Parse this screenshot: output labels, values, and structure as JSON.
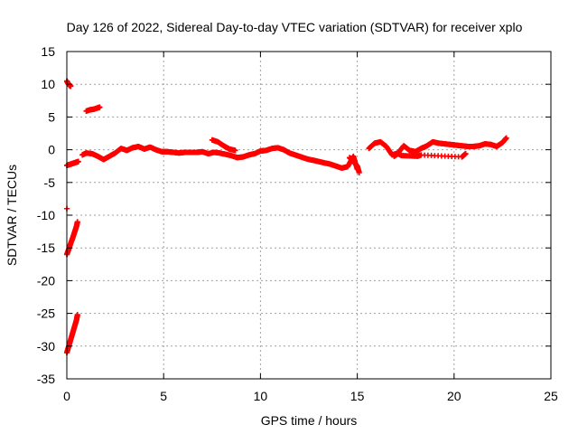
{
  "chart_data": {
    "type": "scatter",
    "title": "Day 126 of 2022, Sidereal Day-to-day VTEC variation (SDTVAR) for receiver xplo",
    "xlabel": "GPS time / hours",
    "ylabel": "SDTVAR / TECUs",
    "xlim": [
      0,
      25
    ],
    "ylim": [
      -35,
      15
    ],
    "xticks": [
      0,
      5,
      10,
      15,
      20,
      25
    ],
    "yticks": [
      15,
      10,
      5,
      0,
      -5,
      -10,
      -15,
      -20,
      -25,
      -30,
      -35
    ],
    "grid": true,
    "marker": "plus",
    "colors": {
      "points": "#ff0000",
      "grid": "#a0a0a0",
      "axes": "#000000"
    },
    "series": [
      {
        "name": "SDTVAR",
        "segments": [
          {
            "x": [
              0.0,
              0.05,
              0.1,
              0.15,
              0.2
            ],
            "y": [
              10.5,
              10.2,
              10.0,
              9.8,
              9.7
            ]
          },
          {
            "x": [
              0.0,
              0.1,
              0.2,
              0.3,
              0.4,
              0.5,
              0.6
            ],
            "y": [
              -2.4,
              -2.3,
              -2.2,
              -2.1,
              -2.0,
              -1.9,
              -1.8
            ]
          },
          {
            "x": [
              0.0,
              0.1,
              0.2,
              0.3,
              0.4,
              0.5,
              0.55
            ],
            "y": [
              -16.0,
              -15.2,
              -14.3,
              -13.5,
              -12.6,
              -11.7,
              -11.0
            ]
          },
          {
            "x": [
              0.0,
              0.1,
              0.2,
              0.3,
              0.4,
              0.5,
              0.55
            ],
            "y": [
              -31.0,
              -30.0,
              -29.0,
              -28.0,
              -27.0,
              -26.0,
              -25.2
            ]
          },
          {
            "x": [
              0.0
            ],
            "y": [
              -9.0
            ]
          },
          {
            "x": [
              1.0,
              1.2,
              1.4,
              1.6,
              1.7
            ],
            "y": [
              5.9,
              6.1,
              6.2,
              6.4,
              6.5
            ]
          },
          {
            "x": [
              0.8,
              1.0,
              1.3,
              1.6,
              1.9,
              2.2,
              2.5,
              2.8,
              3.1,
              3.4,
              3.7,
              4.0,
              4.3,
              4.6,
              4.9,
              5.2,
              5.5,
              5.8,
              6.1,
              6.4,
              6.7,
              7.0,
              7.3,
              7.6,
              7.9,
              8.2,
              8.5,
              8.8,
              9.1,
              9.4,
              9.7,
              10.0,
              10.3,
              10.6,
              10.9,
              11.2,
              11.5,
              11.8,
              12.1,
              12.4,
              12.7,
              13.0,
              13.3,
              13.6,
              13.9,
              14.2,
              14.5,
              14.8,
              15.0
            ],
            "y": [
              -0.8,
              -0.5,
              -0.6,
              -1.0,
              -1.5,
              -1.0,
              -0.5,
              0.2,
              -0.1,
              0.3,
              0.5,
              0.1,
              0.4,
              0.0,
              -0.3,
              -0.3,
              -0.4,
              -0.5,
              -0.4,
              -0.4,
              -0.4,
              -0.3,
              -0.6,
              -0.4,
              -0.5,
              -0.7,
              -0.9,
              -1.2,
              -1.1,
              -0.8,
              -0.6,
              -0.2,
              -0.1,
              0.2,
              0.3,
              0.0,
              -0.5,
              -0.8,
              -1.1,
              -1.4,
              -1.6,
              -1.8,
              -2.0,
              -2.2,
              -2.5,
              -2.8,
              -2.6,
              -1.0,
              -3.0
            ]
          },
          {
            "x": [
              7.5,
              7.8,
              8.1,
              8.4,
              8.7
            ],
            "y": [
              1.5,
              1.2,
              0.6,
              0.1,
              -0.1
            ]
          },
          {
            "x": [
              14.6,
              14.8,
              15.0,
              15.1
            ],
            "y": [
              -1.2,
              -1.8,
              -2.5,
              -3.5
            ]
          },
          {
            "x": [
              15.6,
              15.9,
              16.2,
              16.5,
              16.8,
              17.1,
              17.4,
              17.7,
              18.0,
              18.3,
              18.6,
              18.9,
              19.2,
              19.5,
              19.8,
              20.1,
              20.4,
              20.7,
              21.0,
              21.3,
              21.6,
              21.9,
              22.2,
              22.5,
              22.7
            ],
            "y": [
              0.2,
              1.0,
              1.2,
              0.5,
              -0.8,
              -0.5,
              0.6,
              -0.1,
              -0.3,
              0.2,
              0.6,
              1.2,
              1.0,
              0.9,
              0.8,
              0.7,
              0.6,
              0.5,
              0.5,
              0.6,
              0.9,
              0.8,
              0.5,
              1.1,
              1.8
            ]
          },
          {
            "x": [
              16.9,
              17.1,
              17.3,
              18.1,
              18.3,
              20.4,
              20.6
            ],
            "y": [
              -1.0,
              -0.6,
              -0.9,
              -1.0,
              -0.8,
              -1.1,
              -0.6
            ]
          }
        ]
      }
    ]
  }
}
